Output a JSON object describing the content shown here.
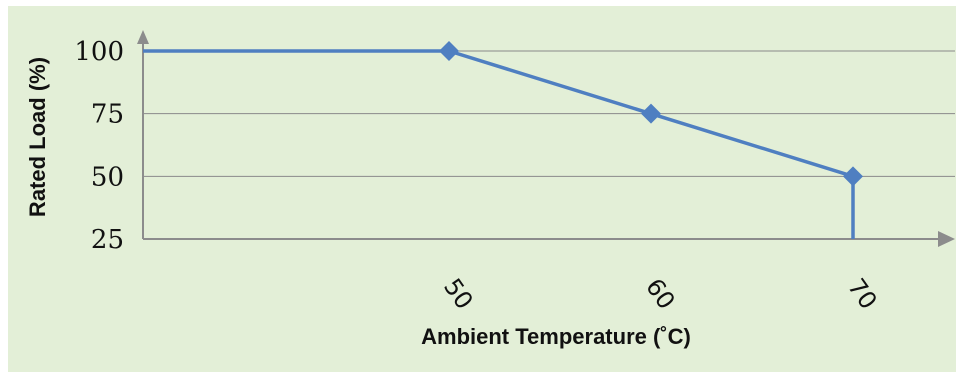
{
  "chart_data": {
    "type": "line",
    "title": "",
    "xlabel": "Ambient Temperature (˚C)",
    "ylabel": "Rated Load (%)",
    "x_ticks": [
      "50",
      "60",
      "70"
    ],
    "y_ticks": [
      "100",
      "75",
      "50",
      "25"
    ],
    "ylim": [
      25,
      100
    ],
    "grid": true,
    "series": [
      {
        "points": [
          {
            "x": 35,
            "y": 100
          },
          {
            "x": 50,
            "y": 100
          },
          {
            "x": 60,
            "y": 75
          },
          {
            "x": 70,
            "y": 50
          },
          {
            "x": 70,
            "y": 25
          }
        ],
        "markers_at_x": [
          50,
          60,
          70
        ]
      }
    ],
    "colors": {
      "background": "#e3efd7",
      "line": "#4f7fc1",
      "grid": "#8a8a8a",
      "axis": "#8c8c8c"
    }
  }
}
